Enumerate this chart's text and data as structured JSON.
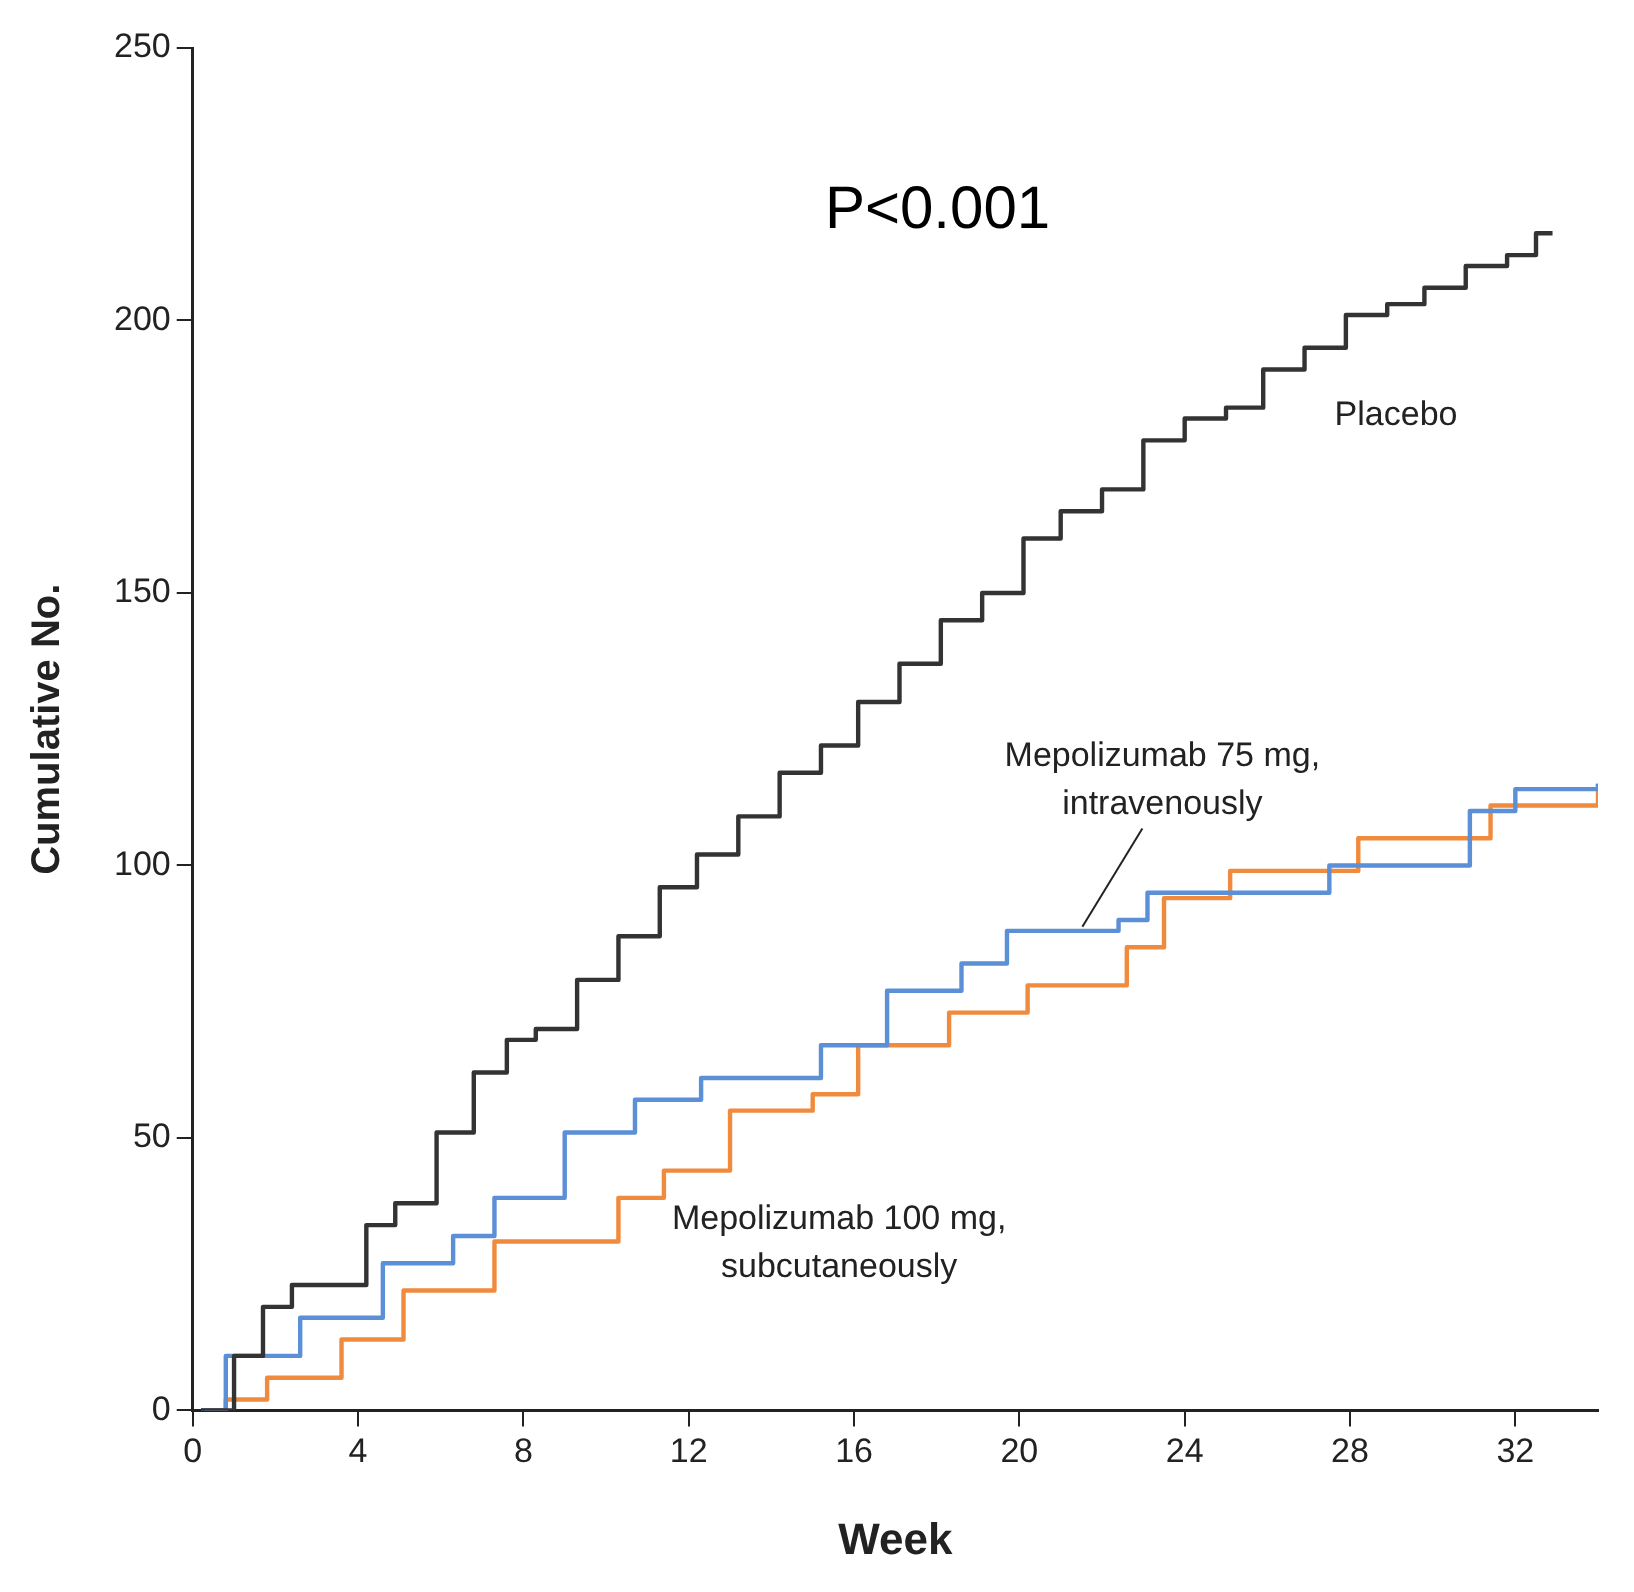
{
  "chart_data": {
    "type": "step",
    "xlabel": "Week",
    "ylabel": "Cumulative No.",
    "annotations": [
      "P<0.001"
    ],
    "xlim": [
      0,
      34
    ],
    "xticks": [
      0,
      4,
      8,
      12,
      16,
      20,
      24,
      28,
      32
    ],
    "ylim": [
      0,
      250
    ],
    "yticks": [
      0,
      50,
      100,
      150,
      200,
      250
    ],
    "grid": false,
    "legend": false,
    "marker": "none",
    "line_style": "solid",
    "series": [
      {
        "name": "Placebo",
        "color": "#333333",
        "x": [
          0.2,
          1,
          1.7,
          2.4,
          3.4,
          4.2,
          4.9,
          5.9,
          6.8,
          7.6,
          8.3,
          9.3,
          10.3,
          11.3,
          12.2,
          13.2,
          14.2,
          15.2,
          16.1,
          17.1,
          18.1,
          19.1,
          20.1,
          21,
          22,
          23,
          24,
          25,
          25.9,
          26.9,
          27.9,
          28.9,
          29.8,
          30.8,
          31.8,
          32.5,
          32.9
        ],
        "values": [
          0,
          10,
          19,
          23,
          23,
          34,
          38,
          51,
          62,
          68,
          70,
          79,
          87,
          96,
          102,
          109,
          117,
          122,
          130,
          137,
          145,
          150,
          160,
          165,
          169,
          178,
          182,
          184,
          191,
          195,
          201,
          203,
          206,
          210,
          212,
          216,
          216
        ]
      },
      {
        "name": "Mepolizumab 75 mg, intravenously",
        "color": "#5b8fd6",
        "x": [
          0.2,
          0.8,
          2.6,
          4.6,
          6.3,
          7.3,
          9,
          10.7,
          12.3,
          15.2,
          16.8,
          18.6,
          19.7,
          22.4,
          23.1,
          27.5,
          30.9,
          32,
          34
        ],
        "values": [
          0,
          10,
          17,
          27,
          32,
          39,
          51,
          57,
          61,
          67,
          77,
          82,
          88,
          90,
          95,
          100,
          110,
          114,
          115
        ]
      },
      {
        "name": "Mepolizumab 100 mg, subcutaneously",
        "color": "#f08a3c",
        "x": [
          0.3,
          0.8,
          1.8,
          3.6,
          5.1,
          7.3,
          10.3,
          11.4,
          13,
          15,
          16.1,
          18.3,
          20.2,
          22.6,
          23.5,
          25.1,
          28.2,
          31.4,
          34
        ],
        "values": [
          0,
          2,
          6,
          13,
          22,
          31,
          39,
          44,
          55,
          58,
          67,
          73,
          78,
          85,
          94,
          99,
          105,
          111,
          115
        ]
      }
    ]
  }
}
